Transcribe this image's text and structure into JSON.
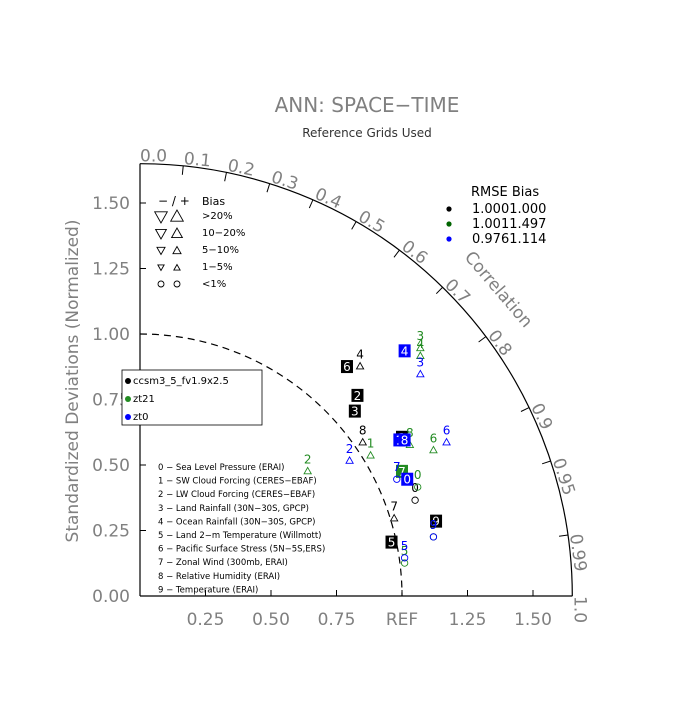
{
  "chart_data": {
    "type": "scatter",
    "title": "ANN: SPACE−TIME",
    "subtitle": "Reference Grids Used",
    "ylabel": "Standardized Deviations (Normalized)",
    "xlabel_ref": "REF",
    "correlation_label": "Correlation",
    "x_ticks": [
      "0.25",
      "0.50",
      "0.75",
      "1.25",
      "1.50"
    ],
    "y_ticks": [
      "0.00",
      "0.25",
      "0.50",
      "0.75",
      "1.00",
      "1.25",
      "1.50"
    ],
    "correlation_ticks": [
      "0.0",
      "0.1",
      "0.2",
      "0.3",
      "0.4",
      "0.5",
      "0.6",
      "0.7",
      "0.8",
      "0.9",
      "0.95",
      "0.99",
      "1.0"
    ],
    "outer_arc_radius": 1.65,
    "reference_arc_radius": 1.0,
    "bias_legend": {
      "header_sign": "− / +",
      "header_bias": "Bias",
      "rows": [
        ">20%",
        "10−20%",
        "5−10%",
        "1−5%",
        "<1%"
      ]
    },
    "rmse_legend": {
      "header": "RMSE Bias",
      "rows": [
        {
          "rmse": "1.000",
          "bias": "1.000",
          "color": "#000000"
        },
        {
          "rmse": "1.001",
          "bias": "1.497",
          "color": "#006400"
        },
        {
          "rmse": "0.976",
          "bias": "1.114",
          "color": "#0000ff"
        }
      ]
    },
    "cases": [
      {
        "name": "ccsm3_5_fv1.9x2.5",
        "color": "#000000"
      },
      {
        "name": "zt21",
        "color": "#228b22"
      },
      {
        "name": "zt0",
        "color": "#0000ff"
      }
    ],
    "variables": [
      "0 − Sea Level Pressure (ERAI)",
      "1 − SW Cloud Forcing (CERES−EBAF)",
      "2 − LW Cloud Forcing (CERES−EBAF)",
      "3 − Land Rainfall (30N−30S, GPCP)",
      "4 − Ocean Rainfall (30N−30S, GPCP)",
      "5 − Land 2−m Temperature (Willmott)",
      "6 − Pacific Surface Stress (5N−5S,ERS)",
      "7 − Zonal Wind (300mb, ERAI)",
      "8 − Relative Humidity (ERAI)",
      "9 − Temperature (ERAI)"
    ],
    "series": [
      {
        "name": "ccsm3_5_fv1.9x2.5",
        "color": "#000000",
        "points": [
          {
            "label": "0",
            "x": 1.05,
            "y": 0.4,
            "marker": "circle"
          },
          {
            "label": "1",
            "x": 1.0,
            "y": 0.6,
            "marker": "box"
          },
          {
            "label": "2",
            "x": 0.83,
            "y": 0.76,
            "marker": "box"
          },
          {
            "label": "3",
            "x": 0.82,
            "y": 0.7,
            "marker": "box"
          },
          {
            "label": "4",
            "x": 0.84,
            "y": 0.91,
            "marker": "up"
          },
          {
            "label": "5",
            "x": 0.96,
            "y": 0.2,
            "marker": "box"
          },
          {
            "label": "6",
            "x": 0.79,
            "y": 0.87,
            "marker": "box"
          },
          {
            "label": "7",
            "x": 0.97,
            "y": 0.33,
            "marker": "up"
          },
          {
            "label": "8",
            "x": 0.85,
            "y": 0.62,
            "marker": "up"
          },
          {
            "label": "9",
            "x": 1.13,
            "y": 0.28,
            "marker": "box"
          }
        ]
      },
      {
        "name": "zt21",
        "color": "#228b22",
        "points": [
          {
            "label": "0",
            "x": 1.06,
            "y": 0.45,
            "marker": "circle"
          },
          {
            "label": "1",
            "x": 0.88,
            "y": 0.57,
            "marker": "up"
          },
          {
            "label": "2",
            "x": 0.64,
            "y": 0.51,
            "marker": "up"
          },
          {
            "label": "3",
            "x": 1.07,
            "y": 0.98,
            "marker": "up"
          },
          {
            "label": "4",
            "x": 1.07,
            "y": 0.95,
            "marker": "up"
          },
          {
            "label": "5",
            "x": 1.01,
            "y": 0.16,
            "marker": "circle"
          },
          {
            "label": "6",
            "x": 1.12,
            "y": 0.59,
            "marker": "up"
          },
          {
            "label": "7",
            "x": 1.0,
            "y": 0.47,
            "marker": "box"
          },
          {
            "label": "8",
            "x": 1.03,
            "y": 0.61,
            "marker": "up"
          },
          {
            "label": "9",
            "x": 1.12,
            "y": 0.26,
            "marker": "circle"
          }
        ]
      },
      {
        "name": "zt0",
        "color": "#0000ff",
        "points": [
          {
            "label": "0",
            "x": 1.02,
            "y": 0.44,
            "marker": "box"
          },
          {
            "label": "1",
            "x": 0.99,
            "y": 0.59,
            "marker": "box"
          },
          {
            "label": "2",
            "x": 0.8,
            "y": 0.55,
            "marker": "up"
          },
          {
            "label": "3",
            "x": 1.07,
            "y": 0.88,
            "marker": "up"
          },
          {
            "label": "4",
            "x": 1.01,
            "y": 0.93,
            "marker": "box"
          },
          {
            "label": "5",
            "x": 1.01,
            "y": 0.18,
            "marker": "circle"
          },
          {
            "label": "6",
            "x": 1.17,
            "y": 0.62,
            "marker": "up"
          },
          {
            "label": "7",
            "x": 0.98,
            "y": 0.48,
            "marker": "circle"
          },
          {
            "label": "8",
            "x": 1.01,
            "y": 0.59,
            "marker": "box"
          },
          {
            "label": "9",
            "x": 1.12,
            "y": 0.26,
            "marker": "circle"
          }
        ]
      }
    ]
  }
}
